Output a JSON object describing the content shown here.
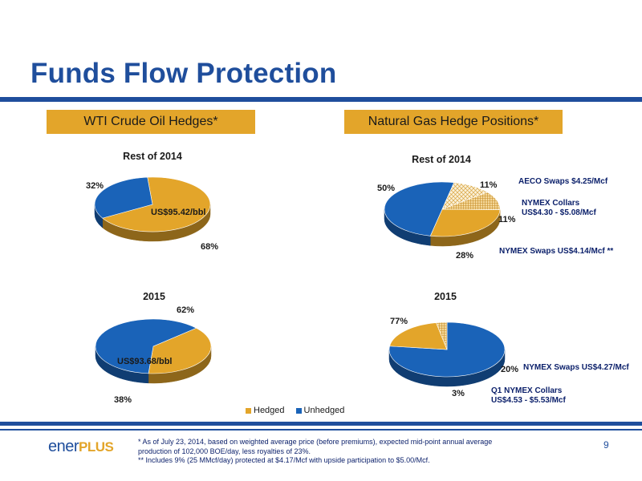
{
  "title": "Funds Flow Protection",
  "sections": {
    "oil": "WTI Crude Oil Hedges*",
    "gas": "Natural Gas Hedge Positions*"
  },
  "colors": {
    "hedged": "#e3a52a",
    "unhedged": "#1a63b8",
    "brand_blue": "#1f4e9c"
  },
  "chart_data": [
    {
      "type": "pie",
      "group": "WTI Crude Oil Hedges*",
      "title": "Rest of 2014",
      "slices": [
        {
          "name": "Hedged",
          "value": 68,
          "label": "68%"
        },
        {
          "name": "Unhedged",
          "value": 32,
          "label": "32%"
        }
      ],
      "annotations": [
        "US$95.42/bbl"
      ]
    },
    {
      "type": "pie",
      "group": "WTI Crude Oil Hedges*",
      "title": "2015",
      "slices": [
        {
          "name": "Hedged",
          "value": 38,
          "label": "38%"
        },
        {
          "name": "Unhedged",
          "value": 62,
          "label": "62%"
        }
      ],
      "annotations": [
        "US$93.68/bbl"
      ]
    },
    {
      "type": "pie",
      "group": "Natural Gas Hedge Positions*",
      "title": "Rest of 2014",
      "slices": [
        {
          "name": "NYMEX Swaps US$4.14/Mcf **",
          "value": 28,
          "label": "28%"
        },
        {
          "name": "Unhedged",
          "value": 50,
          "label": "50%"
        },
        {
          "name": "AECO Swaps $4.25/Mcf",
          "value": 11,
          "label": "11%"
        },
        {
          "name": "NYMEX Collars US$4.30 - $5.08/Mcf",
          "value": 11,
          "label": "11%"
        }
      ],
      "annotations": [
        "AECO Swaps $4.25/Mcf",
        "NYMEX Collars",
        "US$4.30 - $5.08/Mcf",
        "NYMEX Swaps US$4.14/Mcf **"
      ]
    },
    {
      "type": "pie",
      "group": "Natural Gas Hedge Positions*",
      "title": "2015",
      "slices": [
        {
          "name": "Unhedged",
          "value": 77,
          "label": "77%"
        },
        {
          "name": "NYMEX Swaps US$4.27/Mcf",
          "value": 20,
          "label": "20%"
        },
        {
          "name": "Q1 NYMEX Collars US$4.53 - $5.53/Mcf",
          "value": 3,
          "label": "3%"
        }
      ],
      "annotations": [
        "NYMEX Swaps US$4.27/Mcf",
        "Q1 NYMEX Collars",
        "US$4.53 - $5.53/Mcf"
      ]
    }
  ],
  "legend": [
    {
      "label": "Hedged",
      "color": "#e3a52a"
    },
    {
      "label": "Unhedged",
      "color": "#1a63b8"
    }
  ],
  "logo": {
    "part1": "ener",
    "part2": "PLUS"
  },
  "footnotes": {
    "line1": "* As of July 23, 2014, based on weighted average price (before premiums), expected  mid-point annual average",
    "line2": "production of 102,000 BOE/day, less royalties of 23%.",
    "line3": "** Includes 9% (25 MMcf/day) protected at $4.17/Mcf with upside participation to $5.00/Mcf."
  },
  "page_number": "9"
}
